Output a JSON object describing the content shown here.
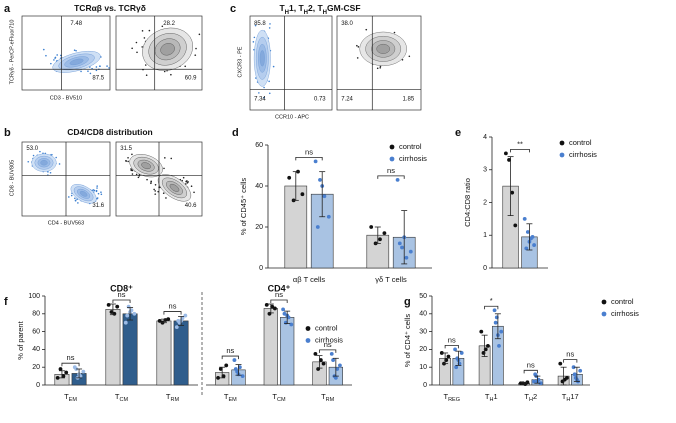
{
  "flow_panels": [
    {
      "letter": "a",
      "title": [
        {
          "text": "TCRαβ vs. TCRγδ"
        }
      ],
      "ylabel": "TCRγδ - PerCP-eFluor710",
      "xlabel": "CD3 - BV510",
      "plots": [
        {
          "gates": [
            "7.48",
            "87.5"
          ]
        },
        {
          "gates": [
            "28.2",
            "60.9"
          ]
        }
      ]
    },
    {
      "letter": "b",
      "title": [
        {
          "text": "CD4/CD8 distribution"
        }
      ],
      "ylabel": "CD8 - BUV805",
      "xlabel": "CD4 - BUV563",
      "plots": [
        {
          "gates": [
            "53.0",
            "31.6"
          ]
        },
        {
          "gates": [
            "31.5",
            "40.6"
          ]
        }
      ]
    },
    {
      "letter": "c",
      "title": [
        {
          "text": "T"
        },
        {
          "text": "H",
          "sub": true
        },
        {
          "text": "1, T"
        },
        {
          "text": "H",
          "sub": true
        },
        {
          "text": "2, T"
        },
        {
          "text": "H",
          "sub": true
        },
        {
          "text": "GM-CSF"
        }
      ],
      "ylabel": "CXCR3 - PE",
      "xlabel": "CCR10 - APC",
      "plots": [
        {
          "gates": [
            "85.8",
            "7.34",
            "0.73"
          ]
        },
        {
          "gates": [
            "38.0",
            "7.24",
            "1.85"
          ]
        }
      ]
    }
  ],
  "chart_data": [
    {
      "type": "bar",
      "letter": "d",
      "ylabel": "% of CD45⁺ cells",
      "categories": [
        "αβ T cells",
        "γδ T cells"
      ],
      "series": [
        {
          "name": "control",
          "color": "#d4d4d4",
          "point_color": "#111111",
          "values": [
            40,
            16
          ],
          "errors": [
            7,
            4
          ],
          "points": [
            [
              44,
              33,
              47,
              36
            ],
            [
              20,
              12,
              14,
              17
            ]
          ]
        },
        {
          "name": "cirrhosis",
          "color": "#a9c3e3",
          "point_color": "#4a7fcf",
          "values": [
            36,
            15
          ],
          "errors": [
            11,
            13
          ],
          "points": [
            [
              52,
              43,
              35,
              25,
              20,
              40
            ],
            [
              43,
              10,
              5,
              8,
              12,
              15
            ]
          ]
        }
      ],
      "annotations": [
        "ns",
        "ns"
      ],
      "ylim": [
        0,
        60
      ],
      "yticks": [
        0,
        20,
        40,
        60
      ],
      "legend": "top-right"
    },
    {
      "type": "bar",
      "letter": "e",
      "ylabel": "CD4:CD8 ratio",
      "categories": [
        null
      ],
      "series": [
        {
          "name": "control",
          "color": "#d4d4d4",
          "point_color": "#111111",
          "values": [
            2.5
          ],
          "errors": [
            0.9
          ],
          "points": [
            [
              3.5,
              3.3,
              2.3,
              1.3
            ]
          ]
        },
        {
          "name": "cirrhosis",
          "color": "#a9c3e3",
          "point_color": "#4a7fcf",
          "values": [
            0.95
          ],
          "errors": [
            0.4
          ],
          "points": [
            [
              1.5,
              1.1,
              0.9,
              0.7,
              0.6,
              0.8,
              0.95
            ]
          ]
        }
      ],
      "annotations": [
        "**"
      ],
      "ylim": [
        0,
        4
      ],
      "yticks": [
        0,
        1,
        2,
        3,
        4
      ],
      "legend": "right"
    },
    {
      "type": "bar",
      "letter": "f",
      "header": "CD8⁺",
      "ylabel": "% of parent",
      "categories": [
        {
          "text": "T",
          "sub": "EM"
        },
        {
          "text": "T",
          "sub": "CM"
        },
        {
          "text": "T",
          "sub": "RM"
        }
      ],
      "series": [
        {
          "color": "#d4d4d4",
          "point_color": "#111111",
          "values": [
            12,
            85,
            72
          ],
          "errors": [
            4,
            6,
            2
          ],
          "points": [
            [
              8,
              18,
              10,
              14
            ],
            [
              90,
              82,
              80,
              88
            ],
            [
              72,
              70,
              73,
              74
            ]
          ]
        },
        {
          "color": "#2f5d8c",
          "point_color": "#9bbbe6",
          "values": [
            13,
            80,
            72
          ],
          "errors": [
            5,
            7,
            5
          ],
          "points": [
            [
              20,
              8,
              10,
              15,
              18,
              12
            ],
            [
              70,
              88,
              84,
              80,
              78,
              82
            ],
            [
              65,
              70,
              75,
              78,
              72,
              72
            ]
          ]
        }
      ],
      "annotations": [
        "ns",
        "ns",
        "ns"
      ],
      "ylim": [
        0,
        100
      ],
      "yticks": [
        0,
        20,
        40,
        60,
        80,
        100
      ]
    },
    {
      "type": "bar",
      "header": "CD4⁺",
      "categories": [
        {
          "text": "T",
          "sub": "EM"
        },
        {
          "text": "T",
          "sub": "CM"
        },
        {
          "text": "T",
          "sub": "RM"
        }
      ],
      "series": [
        {
          "name": "control",
          "color": "#d4d4d4",
          "point_color": "#111111",
          "values": [
            14,
            86,
            26
          ],
          "errors": [
            6,
            5,
            7
          ],
          "points": [
            [
              8,
              18,
              10,
              22
            ],
            [
              90,
              80,
              88,
              86
            ],
            [
              35,
              18,
              28,
              24
            ]
          ]
        },
        {
          "name": "cirrhosis",
          "color": "#a9c3e3",
          "point_color": "#4a7fcf",
          "values": [
            17,
            76,
            20
          ],
          "errors": [
            6,
            7,
            10
          ],
          "points": [
            [
              28,
              15,
              20,
              10,
              18,
              12
            ],
            [
              85,
              70,
              76,
              68,
              80,
              78
            ],
            [
              35,
              10,
              18,
              22,
              28,
              8
            ]
          ]
        }
      ],
      "annotations": [
        "ns",
        "ns",
        "ns"
      ],
      "ylim": [
        0,
        100
      ],
      "legend": "center-right"
    },
    {
      "type": "bar",
      "letter": "g",
      "ylabel": "% of CD4⁺ cells",
      "categories": [
        {
          "text": "T",
          "sub": "REG"
        },
        {
          "text": "T",
          "sub": "H"
        },
        {
          "text": "T",
          "sub": "H"
        },
        {
          "text": "T",
          "sub": "H"
        }
      ],
      "category_suffix": [
        null,
        "1",
        "2",
        "17"
      ],
      "series": [
        {
          "name": "control",
          "color": "#d4d4d4",
          "point_color": "#111111",
          "values": [
            15,
            22,
            1,
            5
          ],
          "errors": [
            3,
            6,
            0.5,
            5
          ],
          "points": [
            [
              18,
              12,
              14,
              16
            ],
            [
              30,
              18,
              20,
              22
            ],
            [
              1,
              1,
              0.5,
              1.5
            ],
            [
              12,
              2,
              3,
              4
            ]
          ]
        },
        {
          "name": "cirrhosis",
          "color": "#a9c3e3",
          "point_color": "#4a7fcf",
          "values": [
            15,
            33,
            3,
            6
          ],
          "errors": [
            4,
            7,
            2,
            4
          ],
          "points": [
            [
              20,
              15,
              12,
              18,
              10,
              14
            ],
            [
              42,
              38,
              22,
              30,
              35,
              28
            ],
            [
              2,
              5,
              3,
              1,
              6,
              2
            ],
            [
              10,
              4,
              2,
              8,
              6,
              3
            ]
          ]
        }
      ],
      "annotations": [
        "ns",
        "*",
        "ns",
        "ns"
      ],
      "ylim": [
        0,
        50
      ],
      "yticks": [
        0,
        10,
        20,
        30,
        40,
        50
      ],
      "legend": "right"
    }
  ]
}
